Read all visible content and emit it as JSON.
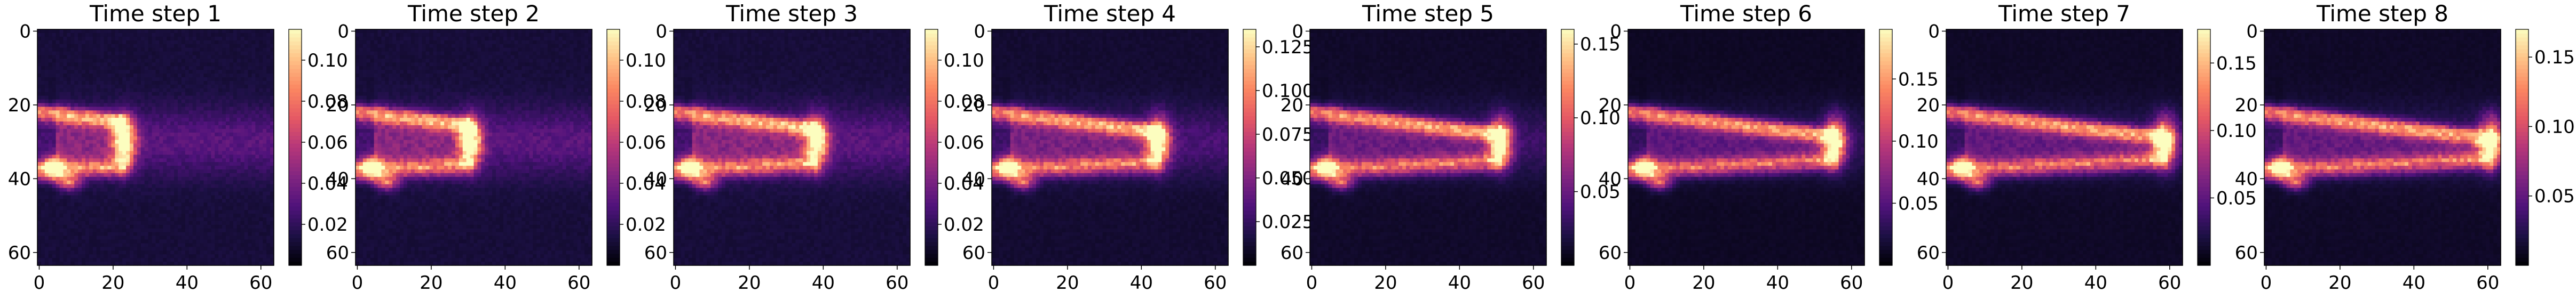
{
  "figure": {
    "panel_count": 8,
    "colormap": "magma",
    "colormap_stops": [
      "#000004",
      "#1c1044",
      "#4f127b",
      "#812581",
      "#b5367a",
      "#e55964",
      "#fb8761",
      "#fec287",
      "#fcfdbf"
    ]
  },
  "chart_data": [
    {
      "type": "heatmap",
      "title": "Time step 1",
      "xlim": [
        0,
        63
      ],
      "ylim": [
        63,
        0
      ],
      "xticks": [
        "0",
        "20",
        "40",
        "60"
      ],
      "yticks": [
        "0",
        "20",
        "40",
        "60"
      ],
      "colorbar": {
        "min": 0.0,
        "max": 0.115,
        "ticks": [
          0.02,
          0.04,
          0.06,
          0.08,
          0.1
        ],
        "tick_labels": [
          "0.02",
          "0.04",
          "0.06",
          "0.08",
          "0.10"
        ]
      },
      "field": {
        "progress": 0.28,
        "peak": 0.115
      }
    },
    {
      "type": "heatmap",
      "title": "Time step 2",
      "xlim": [
        0,
        63
      ],
      "ylim": [
        63,
        0
      ],
      "xticks": [
        "0",
        "20",
        "40",
        "60"
      ],
      "yticks": [
        "0",
        "20",
        "40",
        "60"
      ],
      "colorbar": {
        "min": 0.0,
        "max": 0.115,
        "ticks": [
          0.02,
          0.04,
          0.06,
          0.08,
          0.1
        ],
        "tick_labels": [
          "0.02",
          "0.04",
          "0.06",
          "0.08",
          "0.10"
        ]
      },
      "field": {
        "progress": 0.42,
        "peak": 0.112
      }
    },
    {
      "type": "heatmap",
      "title": "Time step 3",
      "xlim": [
        0,
        63
      ],
      "ylim": [
        63,
        0
      ],
      "xticks": [
        "0",
        "20",
        "40",
        "60"
      ],
      "yticks": [
        "0",
        "20",
        "40",
        "60"
      ],
      "colorbar": {
        "min": 0.0,
        "max": 0.115,
        "ticks": [
          0.02,
          0.04,
          0.06,
          0.08,
          0.1
        ],
        "tick_labels": [
          "0.02",
          "0.04",
          "0.06",
          "0.08",
          "0.10"
        ]
      },
      "field": {
        "progress": 0.56,
        "peak": 0.11
      }
    },
    {
      "type": "heatmap",
      "title": "Time step 4",
      "xlim": [
        0,
        63
      ],
      "ylim": [
        63,
        0
      ],
      "xticks": [
        "0",
        "20",
        "40",
        "60"
      ],
      "yticks": [
        "0",
        "20",
        "40",
        "60"
      ],
      "colorbar": {
        "min": 0.0,
        "max": 0.135,
        "ticks": [
          0.025,
          0.05,
          0.075,
          0.1,
          0.125
        ],
        "tick_labels": [
          "0.025",
          "0.050",
          "0.075",
          "0.100",
          "0.125"
        ]
      },
      "field": {
        "progress": 0.68,
        "peak": 0.13
      }
    },
    {
      "type": "heatmap",
      "title": "Time step 5",
      "xlim": [
        0,
        63
      ],
      "ylim": [
        63,
        0
      ],
      "xticks": [
        "0",
        "20",
        "40",
        "60"
      ],
      "yticks": [
        "0",
        "20",
        "40",
        "60"
      ],
      "colorbar": {
        "min": 0.0,
        "max": 0.16,
        "ticks": [
          0.05,
          0.1,
          0.15
        ],
        "tick_labels": [
          "0.05",
          "0.10",
          "0.15"
        ]
      },
      "field": {
        "progress": 0.8,
        "peak": 0.155
      }
    },
    {
      "type": "heatmap",
      "title": "Time step 6",
      "xlim": [
        0,
        63
      ],
      "ylim": [
        63,
        0
      ],
      "xticks": [
        "0",
        "20",
        "40",
        "60"
      ],
      "yticks": [
        "0",
        "20",
        "40",
        "60"
      ],
      "colorbar": {
        "min": 0.0,
        "max": 0.19,
        "ticks": [
          0.05,
          0.1,
          0.15
        ],
        "tick_labels": [
          "0.05",
          "0.10",
          "0.15"
        ]
      },
      "field": {
        "progress": 0.88,
        "peak": 0.185
      }
    },
    {
      "type": "heatmap",
      "title": "Time step 7",
      "xlim": [
        0,
        63
      ],
      "ylim": [
        63,
        0
      ],
      "xticks": [
        "0",
        "20",
        "40",
        "60"
      ],
      "yticks": [
        "0",
        "20",
        "40",
        "60"
      ],
      "colorbar": {
        "min": 0.0,
        "max": 0.175,
        "ticks": [
          0.05,
          0.1,
          0.15
        ],
        "tick_labels": [
          "0.05",
          "0.10",
          "0.15"
        ]
      },
      "field": {
        "progress": 0.94,
        "peak": 0.17
      }
    },
    {
      "type": "heatmap",
      "title": "Time step 8",
      "xlim": [
        0,
        63
      ],
      "ylim": [
        63,
        0
      ],
      "xticks": [
        "0",
        "20",
        "40",
        "60"
      ],
      "yticks": [
        "0",
        "20",
        "40",
        "60"
      ],
      "colorbar": {
        "min": 0.0,
        "max": 0.17,
        "ticks": [
          0.05,
          0.1,
          0.15
        ],
        "tick_labels": [
          "0.05",
          "0.10",
          "0.15"
        ]
      },
      "field": {
        "progress": 0.98,
        "peak": 0.165
      }
    }
  ]
}
